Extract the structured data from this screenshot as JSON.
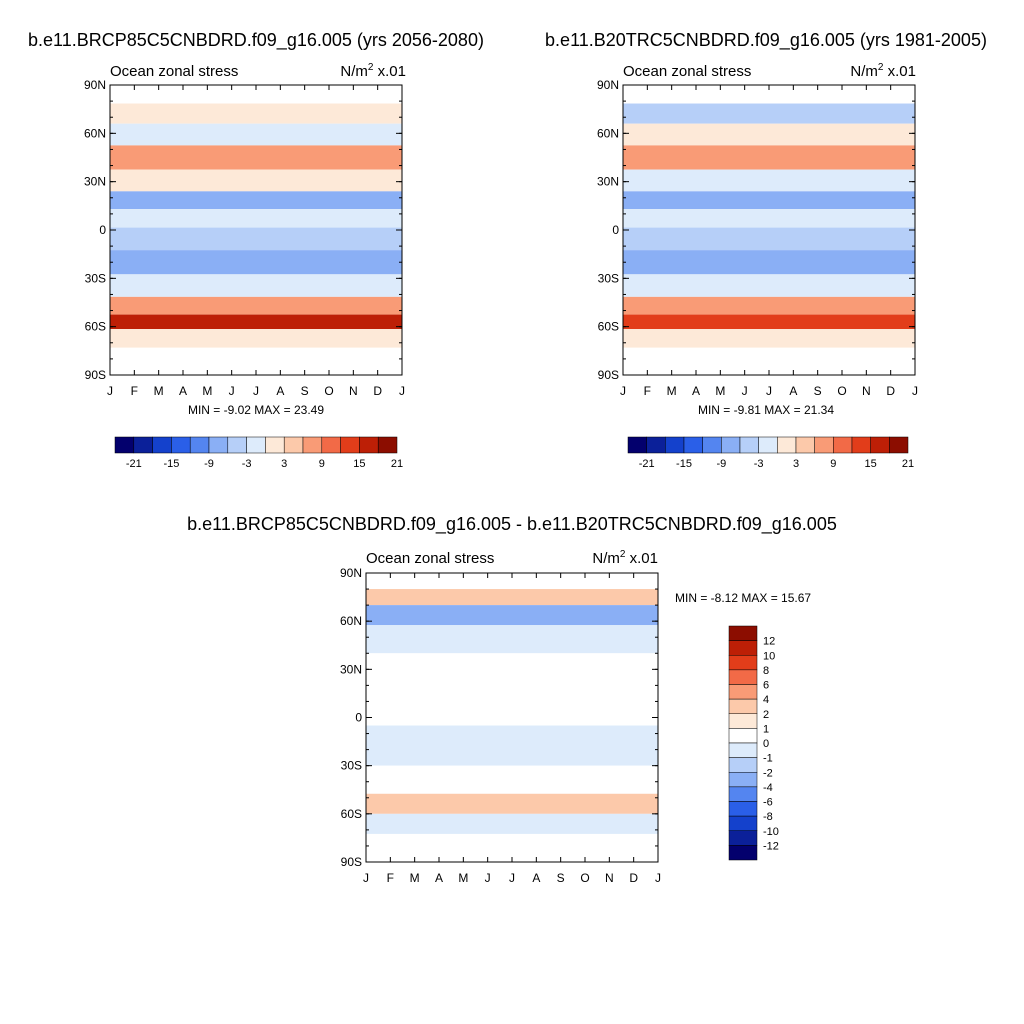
{
  "chart_data": [
    {
      "type": "heatmap",
      "title": "b.e11.BRCP85C5CNBDRD.f09_g16.005 (yrs 2056-2080)",
      "subtitle_left": "Ocean zonal stress",
      "units": {
        "base": "N/m",
        "sup": "2",
        "suffix": " x.01"
      },
      "x_ticks": [
        "J",
        "F",
        "M",
        "A",
        "M",
        "J",
        "J",
        "A",
        "S",
        "O",
        "N",
        "D",
        "J"
      ],
      "y_ticks": [
        "90N",
        "60N",
        "30N",
        "0",
        "30S",
        "60S",
        "90S"
      ],
      "ylim": [
        -90,
        90
      ],
      "stats": "MIN =  -9.02 MAX =  23.49",
      "min": -9.02,
      "max": 23.49,
      "colorbar": {
        "orientation": "horizontal",
        "labels": [
          "-21",
          "-15",
          "-9",
          "-3",
          "3",
          "9",
          "15",
          "21"
        ],
        "colors": [
          "#03006d",
          "#0b2099",
          "#1441cc",
          "#2a5fe8",
          "#5485f0",
          "#8aaff5",
          "#b6cff8",
          "#ddebfb",
          "#fde9d8",
          "#fcc9aa",
          "#f99b76",
          "#f26a47",
          "#e23d1a",
          "#bd1f06",
          "#8c0d00"
        ]
      },
      "bands": [
        {
          "lat": 85,
          "value": null
        },
        {
          "lat": 72,
          "value": 2
        },
        {
          "lat": 60,
          "value": 1
        },
        {
          "lat": 45,
          "value": 9
        },
        {
          "lat": 30,
          "value": 2
        },
        {
          "lat": 18,
          "value": -5
        },
        {
          "lat": 8,
          "value": 1
        },
        {
          "lat": -5,
          "value": -4
        },
        {
          "lat": -20,
          "value": -8
        },
        {
          "lat": -35,
          "value": 1
        },
        {
          "lat": -48,
          "value": 10
        },
        {
          "lat": -57,
          "value": 18
        },
        {
          "lat": -66,
          "value": 4
        },
        {
          "lat": -80,
          "value": null
        }
      ]
    },
    {
      "type": "heatmap",
      "title": "b.e11.B20TRC5CNBDRD.f09_g16.005 (yrs 1981-2005)",
      "subtitle_left": "Ocean zonal stress",
      "units": {
        "base": "N/m",
        "sup": "2",
        "suffix": " x.01"
      },
      "x_ticks": [
        "J",
        "F",
        "M",
        "A",
        "M",
        "J",
        "J",
        "A",
        "S",
        "O",
        "N",
        "D",
        "J"
      ],
      "y_ticks": [
        "90N",
        "60N",
        "30N",
        "0",
        "30S",
        "60S",
        "90S"
      ],
      "ylim": [
        -90,
        90
      ],
      "stats": "MIN =  -9.81 MAX =  21.34",
      "min": -9.81,
      "max": 21.34,
      "colorbar": {
        "orientation": "horizontal",
        "labels": [
          "-21",
          "-15",
          "-9",
          "-3",
          "3",
          "9",
          "15",
          "21"
        ],
        "colors": [
          "#03006d",
          "#0b2099",
          "#1441cc",
          "#2a5fe8",
          "#5485f0",
          "#8aaff5",
          "#b6cff8",
          "#ddebfb",
          "#fde9d8",
          "#fcc9aa",
          "#f99b76",
          "#f26a47",
          "#e23d1a",
          "#bd1f06",
          "#8c0d00"
        ]
      },
      "bands": [
        {
          "lat": 85,
          "value": null
        },
        {
          "lat": 72,
          "value": -3
        },
        {
          "lat": 60,
          "value": 2
        },
        {
          "lat": 45,
          "value": 9
        },
        {
          "lat": 30,
          "value": 1
        },
        {
          "lat": 18,
          "value": -6
        },
        {
          "lat": 8,
          "value": 1
        },
        {
          "lat": -5,
          "value": -4
        },
        {
          "lat": -20,
          "value": -8
        },
        {
          "lat": -35,
          "value": 1
        },
        {
          "lat": -48,
          "value": 10
        },
        {
          "lat": -57,
          "value": 17
        },
        {
          "lat": -66,
          "value": 3
        },
        {
          "lat": -80,
          "value": null
        }
      ]
    },
    {
      "type": "heatmap",
      "title": "b.e11.BRCP85C5CNBDRD.f09_g16.005 - b.e11.B20TRC5CNBDRD.f09_g16.005",
      "subtitle_left": "Ocean zonal stress",
      "units": {
        "base": "N/m",
        "sup": "2",
        "suffix": " x.01"
      },
      "x_ticks": [
        "J",
        "F",
        "M",
        "A",
        "M",
        "J",
        "J",
        "A",
        "S",
        "O",
        "N",
        "D",
        "J"
      ],
      "y_ticks": [
        "90N",
        "60N",
        "30N",
        "0",
        "30S",
        "60S",
        "90S"
      ],
      "ylim": [
        -90,
        90
      ],
      "stats": "MIN =  -8.12 MAX =  15.67",
      "min": -8.12,
      "max": 15.67,
      "colorbar": {
        "orientation": "vertical",
        "labels": [
          "12",
          "10",
          "8",
          "6",
          "4",
          "2",
          "1",
          "0",
          "-1",
          "-2",
          "-4",
          "-6",
          "-8",
          "-10",
          "-12"
        ],
        "colors": [
          "#8c0d00",
          "#bd1f06",
          "#e23d1a",
          "#f26a47",
          "#f99b76",
          "#fcc9aa",
          "#fde9d8",
          "#ffffff",
          "#ddebfb",
          "#b6cff8",
          "#8aaff5",
          "#5485f0",
          "#2a5fe8",
          "#1441cc",
          "#0b2099",
          "#03006d"
        ]
      },
      "bands": [
        {
          "lat": 85,
          "value": null
        },
        {
          "lat": 75,
          "value": 2
        },
        {
          "lat": 65,
          "value": -4
        },
        {
          "lat": 50,
          "value": -0.5
        },
        {
          "lat": 30,
          "value": 0.5
        },
        {
          "lat": 10,
          "value": 0.5
        },
        {
          "lat": -20,
          "value": -0.5
        },
        {
          "lat": -40,
          "value": 0.5
        },
        {
          "lat": -55,
          "value": 2
        },
        {
          "lat": -65,
          "value": -1
        },
        {
          "lat": -80,
          "value": null
        }
      ]
    }
  ]
}
